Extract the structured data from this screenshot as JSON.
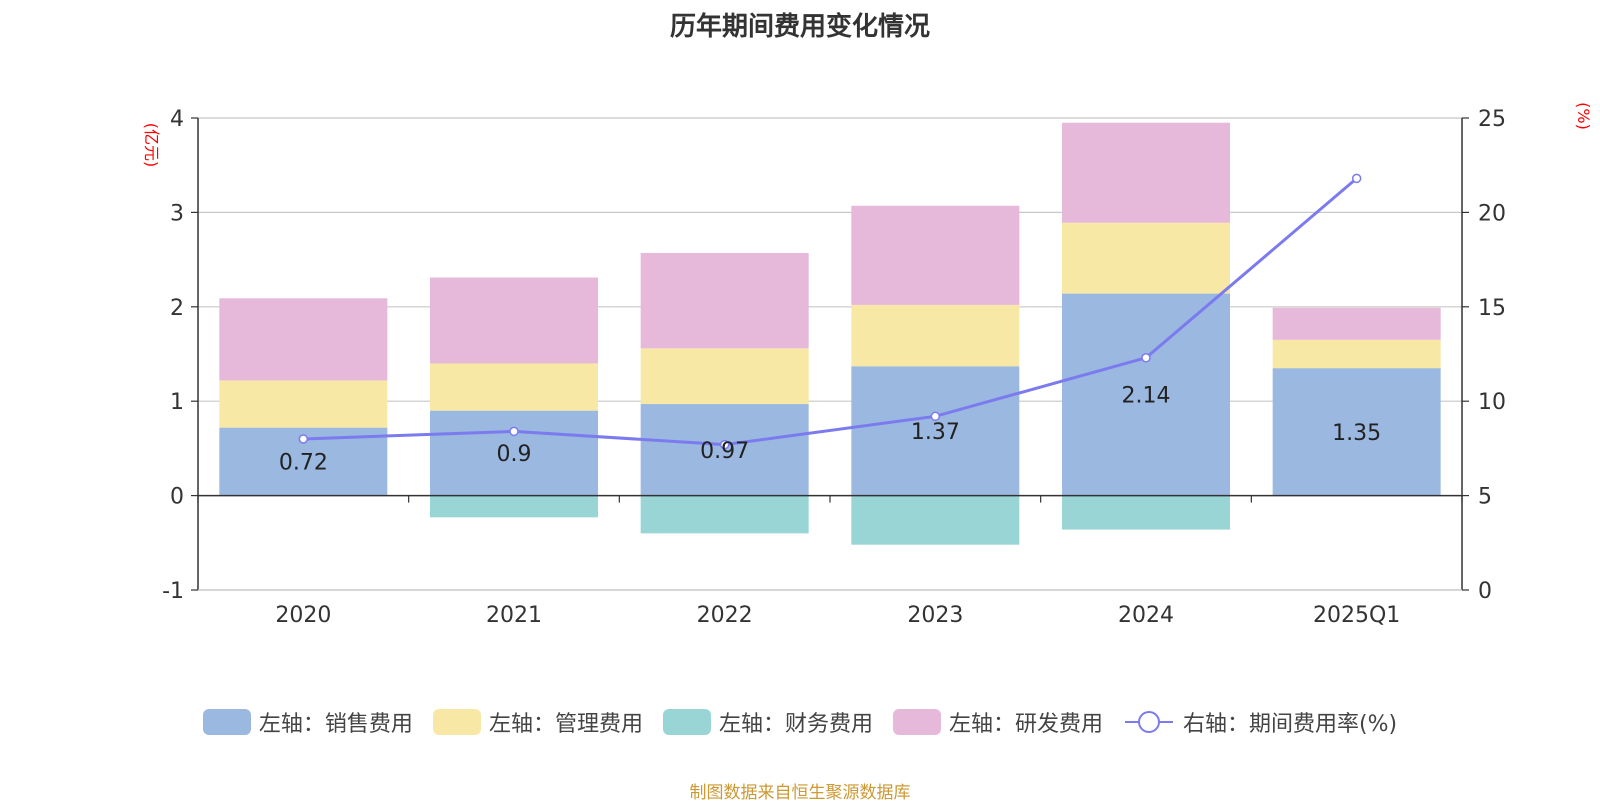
{
  "title": "历年期间费用变化情况",
  "footer": "制图数据来自恒生聚源数据库",
  "left_axis_unit": "(亿元)",
  "right_axis_unit": "(%)",
  "colors": {
    "sales": "#9bb8e0",
    "admin": "#f8e8a6",
    "finance": "#99d5d5",
    "rnd": "#e6b8da",
    "rate_line": "#7b7bef",
    "unit_label": "#ff0000",
    "grid": "#c8c8c8",
    "axis": "#333333"
  },
  "chart_data": {
    "type": "bar",
    "stacked": true,
    "categories": [
      "2020",
      "2021",
      "2022",
      "2023",
      "2024",
      "2025Q1"
    ],
    "series": [
      {
        "name": "左轴：销售费用",
        "axis": "left",
        "values": [
          0.72,
          0.9,
          0.97,
          1.37,
          2.14,
          1.35
        ]
      },
      {
        "name": "左轴：管理费用",
        "axis": "left",
        "values": [
          0.5,
          0.5,
          0.59,
          0.65,
          0.75,
          0.3
        ]
      },
      {
        "name": "左轴：财务费用",
        "axis": "left",
        "values": [
          0,
          -0.23,
          -0.4,
          -0.52,
          -0.36,
          0
        ]
      },
      {
        "name": "左轴：研发费用",
        "axis": "left",
        "values": [
          0.87,
          0.91,
          1.01,
          1.05,
          1.06,
          0.34
        ]
      },
      {
        "name": "右轴：期间费用率(%)",
        "axis": "right",
        "type": "line",
        "values": [
          8.0,
          8.4,
          7.7,
          9.2,
          12.3,
          21.8
        ]
      }
    ],
    "data_labels": [
      "0.72",
      "0.9",
      "0.97",
      "1.37",
      "2.14",
      "1.35"
    ],
    "y_left": {
      "min": -1,
      "max": 4,
      "ticks": [
        "-1",
        "0",
        "1",
        "2",
        "3",
        "4"
      ]
    },
    "y_right": {
      "min": 0,
      "max": 25,
      "ticks": [
        "0",
        "5",
        "10",
        "15",
        "20",
        "25"
      ]
    },
    "grid": true,
    "legend_position": "bottom"
  }
}
